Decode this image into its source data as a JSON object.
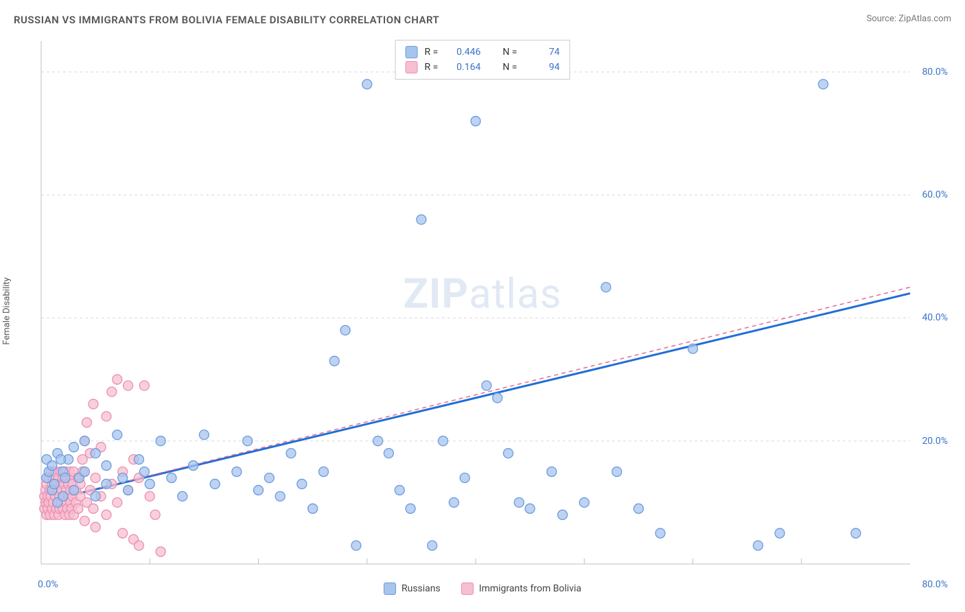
{
  "header": {
    "title": "RUSSIAN VS IMMIGRANTS FROM BOLIVIA FEMALE DISABILITY CORRELATION CHART",
    "source": "Source: ZipAtlas.com"
  },
  "watermark": {
    "part1": "ZIP",
    "part2": "atlas"
  },
  "chart": {
    "type": "scatter",
    "y_label": "Female Disability",
    "xlim": [
      0,
      80
    ],
    "ylim": [
      0,
      85
    ],
    "x_origin_label": "0.0%",
    "x_max_label": "80.0%",
    "y_ticks": [
      {
        "value": 20,
        "label": "20.0%"
      },
      {
        "value": 40,
        "label": "40.0%"
      },
      {
        "value": 60,
        "label": "60.0%"
      },
      {
        "value": 80,
        "label": "80.0%"
      }
    ],
    "x_minor_ticks": [
      10,
      20,
      30,
      40,
      50,
      60,
      70
    ],
    "background_color": "#ffffff",
    "grid_color": "#d9d9d9",
    "axis_color": "#bfbfbf",
    "marker_radius": 7,
    "stroke_width": 1.3,
    "series": [
      {
        "id": "russians",
        "label": "Russians",
        "color_fill": "#a7c4ec",
        "color_stroke": "#6a9be0",
        "swatch": "#a7c4ec",
        "stats_r": "0.446",
        "stats_n": "74",
        "trend": {
          "x1": 0,
          "y1": 10,
          "x2": 80,
          "y2": 44,
          "color": "#1f6fd6",
          "dashed": false,
          "width": 3
        },
        "points": [
          [
            0.5,
            14
          ],
          [
            0.5,
            17
          ],
          [
            0.7,
            15
          ],
          [
            1,
            12
          ],
          [
            1,
            16
          ],
          [
            1.2,
            13
          ],
          [
            1.5,
            10
          ],
          [
            1.5,
            18
          ],
          [
            2,
            11
          ],
          [
            2,
            15
          ],
          [
            2.5,
            17
          ],
          [
            3,
            12
          ],
          [
            3,
            19
          ],
          [
            3.5,
            14
          ],
          [
            4,
            20
          ],
          [
            4,
            15
          ],
          [
            5,
            11
          ],
          [
            5,
            18
          ],
          [
            6,
            13
          ],
          [
            6,
            16
          ],
          [
            7,
            21
          ],
          [
            7.5,
            14
          ],
          [
            8,
            12
          ],
          [
            9,
            17
          ],
          [
            9.5,
            15
          ],
          [
            10,
            13
          ],
          [
            11,
            20
          ],
          [
            12,
            14
          ],
          [
            13,
            11
          ],
          [
            14,
            16
          ],
          [
            15,
            21
          ],
          [
            16,
            13
          ],
          [
            18,
            15
          ],
          [
            19,
            20
          ],
          [
            20,
            12
          ],
          [
            21,
            14
          ],
          [
            22,
            11
          ],
          [
            23,
            18
          ],
          [
            24,
            13
          ],
          [
            25,
            9
          ],
          [
            26,
            15
          ],
          [
            27,
            33
          ],
          [
            28,
            38
          ],
          [
            29,
            3
          ],
          [
            30,
            78
          ],
          [
            31,
            20
          ],
          [
            32,
            18
          ],
          [
            33,
            12
          ],
          [
            34,
            9
          ],
          [
            35,
            56
          ],
          [
            36,
            3
          ],
          [
            37,
            20
          ],
          [
            38,
            10
          ],
          [
            39,
            14
          ],
          [
            40,
            72
          ],
          [
            41,
            29
          ],
          [
            42,
            27
          ],
          [
            43,
            18
          ],
          [
            44,
            10
          ],
          [
            45,
            9
          ],
          [
            47,
            15
          ],
          [
            48,
            8
          ],
          [
            50,
            10
          ],
          [
            52,
            45
          ],
          [
            53,
            15
          ],
          [
            55,
            9
          ],
          [
            57,
            5
          ],
          [
            60,
            35
          ],
          [
            66,
            3
          ],
          [
            68,
            5
          ],
          [
            72,
            78
          ],
          [
            75,
            5
          ],
          [
            1.8,
            17
          ],
          [
            2.2,
            14
          ]
        ]
      },
      {
        "id": "bolivia",
        "label": "Immigrants from Bolivia",
        "color_fill": "#f7bfd1",
        "color_stroke": "#ec8eb0",
        "swatch": "#f7bfd1",
        "stats_r": "0.164",
        "stats_n": "94",
        "trend": {
          "x1": 0,
          "y1": 10,
          "x2": 80,
          "y2": 45,
          "color": "#e26a94",
          "dashed": true,
          "width": 1.5
        },
        "points": [
          [
            0.3,
            9
          ],
          [
            0.3,
            11
          ],
          [
            0.4,
            10
          ],
          [
            0.4,
            12
          ],
          [
            0.5,
            8
          ],
          [
            0.5,
            13
          ],
          [
            0.6,
            11
          ],
          [
            0.6,
            9
          ],
          [
            0.7,
            14
          ],
          [
            0.7,
            10
          ],
          [
            0.8,
            12
          ],
          [
            0.8,
            8
          ],
          [
            0.9,
            15
          ],
          [
            0.9,
            11
          ],
          [
            1,
            13
          ],
          [
            1,
            9
          ],
          [
            1.1,
            10
          ],
          [
            1.1,
            14
          ],
          [
            1.2,
            12
          ],
          [
            1.2,
            8
          ],
          [
            1.3,
            11
          ],
          [
            1.3,
            15
          ],
          [
            1.4,
            9
          ],
          [
            1.4,
            13
          ],
          [
            1.5,
            10
          ],
          [
            1.5,
            12
          ],
          [
            1.6,
            14
          ],
          [
            1.6,
            8
          ],
          [
            1.7,
            11
          ],
          [
            1.7,
            9
          ],
          [
            1.8,
            13
          ],
          [
            1.8,
            15
          ],
          [
            1.9,
            10
          ],
          [
            1.9,
            12
          ],
          [
            2,
            14
          ],
          [
            2,
            9
          ],
          [
            2.1,
            11
          ],
          [
            2.1,
            13
          ],
          [
            2.2,
            8
          ],
          [
            2.2,
            15
          ],
          [
            2.3,
            10
          ],
          [
            2.3,
            12
          ],
          [
            2.4,
            14
          ],
          [
            2.4,
            9
          ],
          [
            2.5,
            11
          ],
          [
            2.5,
            13
          ],
          [
            2.6,
            8
          ],
          [
            2.6,
            15
          ],
          [
            2.7,
            10
          ],
          [
            2.7,
            12
          ],
          [
            2.8,
            14
          ],
          [
            2.8,
            9
          ],
          [
            2.9,
            11
          ],
          [
            2.9,
            13
          ],
          [
            3,
            8
          ],
          [
            3,
            15
          ],
          [
            3.2,
            10
          ],
          [
            3.2,
            12
          ],
          [
            3.4,
            14
          ],
          [
            3.4,
            9
          ],
          [
            3.6,
            11
          ],
          [
            3.6,
            13
          ],
          [
            3.8,
            17
          ],
          [
            3.8,
            15
          ],
          [
            4,
            20
          ],
          [
            4,
            7
          ],
          [
            4.2,
            23
          ],
          [
            4.2,
            10
          ],
          [
            4.5,
            18
          ],
          [
            4.5,
            12
          ],
          [
            4.8,
            26
          ],
          [
            4.8,
            9
          ],
          [
            5,
            6
          ],
          [
            5,
            14
          ],
          [
            5.5,
            19
          ],
          [
            5.5,
            11
          ],
          [
            6,
            24
          ],
          [
            6,
            8
          ],
          [
            6.5,
            28
          ],
          [
            6.5,
            13
          ],
          [
            7,
            30
          ],
          [
            7,
            10
          ],
          [
            7.5,
            5
          ],
          [
            7.5,
            15
          ],
          [
            8,
            29
          ],
          [
            8,
            12
          ],
          [
            8.5,
            4
          ],
          [
            8.5,
            17
          ],
          [
            9,
            3
          ],
          [
            9,
            14
          ],
          [
            9.5,
            29
          ],
          [
            10,
            11
          ],
          [
            10.5,
            8
          ],
          [
            11,
            2
          ]
        ]
      }
    ],
    "legend": {
      "stats_box": {
        "r_label": "R =",
        "n_label": "N ="
      },
      "bottom": [
        {
          "series": "russians"
        },
        {
          "series": "bolivia"
        }
      ]
    }
  }
}
